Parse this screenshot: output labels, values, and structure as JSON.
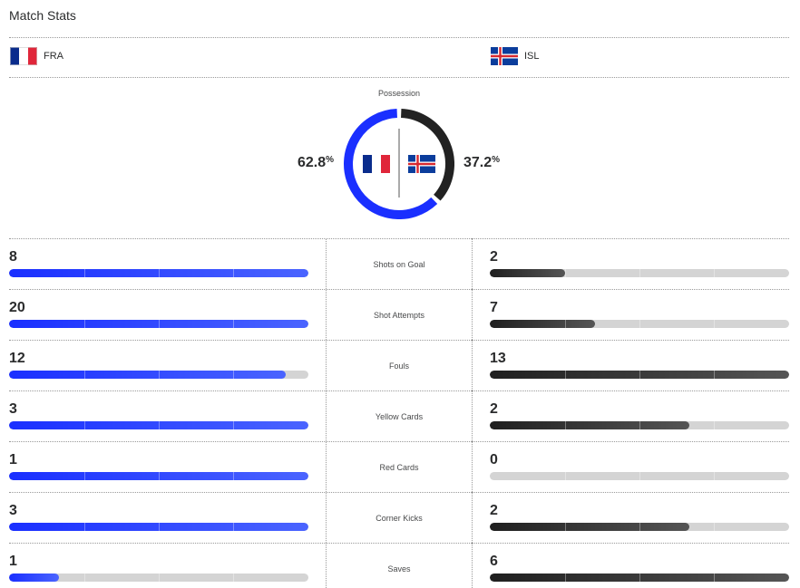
{
  "header": {
    "title": "Match Stats"
  },
  "teams": {
    "home": {
      "abbr": "FRA",
      "flag": "france-flag-icon"
    },
    "away": {
      "abbr": "ISL",
      "flag": "iceland-flag-icon"
    }
  },
  "possession": {
    "label": "Possession",
    "home_value": "62.8",
    "away_value": "37.2",
    "unit": "%",
    "home_fraction": 0.628,
    "away_fraction": 0.372
  },
  "colors": {
    "home": "#1a2fff",
    "away": "#222222",
    "track": "#d4d4d4"
  },
  "stats": [
    {
      "label": "Shots on Goal",
      "home": "8",
      "away": "2",
      "home_fill": 1.0,
      "away_fill": 0.25
    },
    {
      "label": "Shot Attempts",
      "home": "20",
      "away": "7",
      "home_fill": 1.0,
      "away_fill": 0.35
    },
    {
      "label": "Fouls",
      "home": "12",
      "away": "13",
      "home_fill": 0.923,
      "away_fill": 1.0
    },
    {
      "label": "Yellow Cards",
      "home": "3",
      "away": "2",
      "home_fill": 1.0,
      "away_fill": 0.667
    },
    {
      "label": "Red Cards",
      "home": "1",
      "away": "0",
      "home_fill": 1.0,
      "away_fill": 0.0
    },
    {
      "label": "Corner Kicks",
      "home": "3",
      "away": "2",
      "home_fill": 1.0,
      "away_fill": 0.667
    },
    {
      "label": "Saves",
      "home": "1",
      "away": "6",
      "home_fill": 0.167,
      "away_fill": 1.0
    }
  ]
}
